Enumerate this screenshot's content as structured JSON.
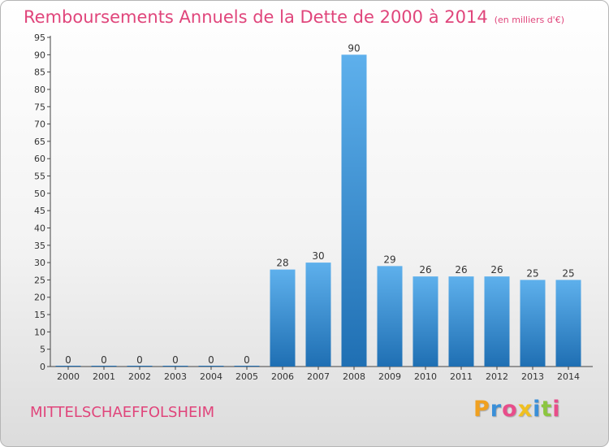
{
  "title": "Remboursements Annuels de la Dette de 2000 à 2014",
  "subtitle": "(en milliers d'€)",
  "town": "MITTELSCHAEFFOLSHEIM",
  "brand": {
    "letters": [
      "P",
      "r",
      "o",
      "x",
      "i",
      "t",
      "i"
    ],
    "colors": [
      "#f0a020",
      "#3a8fd8",
      "#e84d8a",
      "#f0c020",
      "#3a8fd8",
      "#8cc63f",
      "#e84d8a"
    ]
  },
  "colors": {
    "bar_top": "#5eb0ec",
    "bar_bottom": "#1f6fb3",
    "title": "#e0457b"
  },
  "chart_data": {
    "type": "bar",
    "categories": [
      "2000",
      "2001",
      "2002",
      "2003",
      "2004",
      "2005",
      "2006",
      "2007",
      "2008",
      "2009",
      "2010",
      "2011",
      "2012",
      "2013",
      "2014"
    ],
    "values": [
      0,
      0,
      0,
      0,
      0,
      0,
      28,
      30,
      90,
      29,
      26,
      26,
      26,
      25,
      25
    ],
    "ylim": [
      0,
      95
    ],
    "yticks": [
      0,
      5,
      10,
      15,
      20,
      25,
      30,
      35,
      40,
      45,
      50,
      55,
      60,
      65,
      70,
      75,
      80,
      85,
      90,
      95
    ],
    "grid": false,
    "legend": "none"
  }
}
